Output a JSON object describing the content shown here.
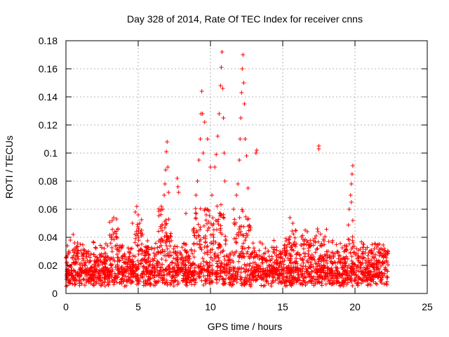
{
  "chart_data": {
    "type": "scatter",
    "title": "Day 328 of 2014, Rate Of TEC Index for receiver cnns",
    "xlabel": "GPS time / hours",
    "ylabel": "ROTI / TECUs",
    "xlim": [
      0,
      25
    ],
    "ylim": [
      0,
      0.18
    ],
    "xticks": [
      "0",
      "5",
      "10",
      "15",
      "20",
      "25"
    ],
    "yticks": [
      "0",
      "0.02",
      "0.04",
      "0.06",
      "0.08",
      "0.1",
      "0.12",
      "0.14",
      "0.16",
      "0.18"
    ],
    "grid": true,
    "marker": "plus",
    "color": "#ff0000",
    "series": [
      {
        "name": "ROTI",
        "points": [
          [
            0.1,
            0.034
          ],
          [
            0.2,
            0.03
          ],
          [
            0.3,
            0.038
          ],
          [
            0.5,
            0.042
          ],
          [
            0.6,
            0.036
          ],
          [
            0.8,
            0.036
          ],
          [
            1.0,
            0.035
          ],
          [
            3.2,
            0.052
          ],
          [
            3.3,
            0.054
          ],
          [
            3.5,
            0.053
          ],
          [
            3.6,
            0.046
          ],
          [
            4.6,
            0.05
          ],
          [
            4.8,
            0.058
          ],
          [
            4.9,
            0.062
          ],
          [
            5.0,
            0.056
          ],
          [
            5.1,
            0.05
          ],
          [
            6.6,
            0.062
          ],
          [
            6.7,
            0.06
          ],
          [
            6.8,
            0.07
          ],
          [
            6.85,
            0.078
          ],
          [
            6.9,
            0.088
          ],
          [
            6.95,
            0.101
          ],
          [
            7.0,
            0.108
          ],
          [
            7.05,
            0.09
          ],
          [
            7.1,
            0.072
          ],
          [
            7.7,
            0.082
          ],
          [
            7.75,
            0.076
          ],
          [
            7.8,
            0.072
          ],
          [
            8.3,
            0.057
          ],
          [
            9.0,
            0.07
          ],
          [
            9.1,
            0.08
          ],
          [
            9.2,
            0.095
          ],
          [
            9.3,
            0.11
          ],
          [
            9.35,
            0.128
          ],
          [
            9.4,
            0.144
          ],
          [
            9.45,
            0.128
          ],
          [
            9.5,
            0.1
          ],
          [
            9.6,
            0.122
          ],
          [
            9.8,
            0.11
          ],
          [
            10.0,
            0.09
          ],
          [
            10.1,
            0.07
          ],
          [
            10.3,
            0.09
          ],
          [
            10.4,
            0.099
          ],
          [
            10.5,
            0.112
          ],
          [
            10.6,
            0.128
          ],
          [
            10.7,
            0.148
          ],
          [
            10.75,
            0.161
          ],
          [
            10.8,
            0.172
          ],
          [
            10.85,
            0.146
          ],
          [
            10.9,
            0.125
          ],
          [
            10.95,
            0.1
          ],
          [
            11.0,
            0.08
          ],
          [
            11.6,
            0.06
          ],
          [
            11.8,
            0.07
          ],
          [
            11.9,
            0.078
          ],
          [
            12.0,
            0.095
          ],
          [
            12.05,
            0.11
          ],
          [
            12.1,
            0.125
          ],
          [
            12.15,
            0.143
          ],
          [
            12.2,
            0.16
          ],
          [
            12.25,
            0.17
          ],
          [
            12.3,
            0.15
          ],
          [
            12.35,
            0.135
          ],
          [
            12.4,
            0.11
          ],
          [
            12.5,
            0.098
          ],
          [
            12.6,
            0.075
          ],
          [
            13.2,
            0.102
          ],
          [
            13.15,
            0.1
          ],
          [
            15.5,
            0.054
          ],
          [
            15.7,
            0.05
          ],
          [
            16.7,
            0.044
          ],
          [
            17.5,
            0.105
          ],
          [
            17.5,
            0.103
          ],
          [
            17.4,
            0.046
          ],
          [
            19.6,
            0.06
          ],
          [
            19.7,
            0.07
          ],
          [
            19.75,
            0.078
          ],
          [
            19.8,
            0.085
          ],
          [
            19.85,
            0.091
          ],
          [
            19.75,
            0.065
          ],
          [
            19.85,
            0.052
          ],
          [
            20.6,
            0.035
          ],
          [
            21.4,
            0.035
          ],
          [
            21.5,
            0.033
          ]
        ]
      }
    ]
  }
}
